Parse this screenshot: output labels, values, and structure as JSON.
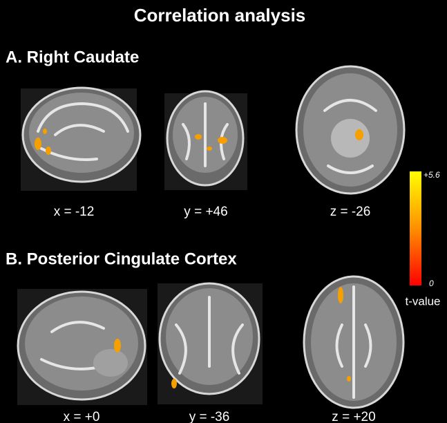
{
  "title": "Correlation analysis",
  "panels": [
    {
      "label": "A. Right Caudate",
      "slices": [
        "x = -12",
        "y = +46",
        "z = -26"
      ]
    },
    {
      "label": "B. Posterior Cingulate Cortex",
      "slices": [
        "x = +0",
        "y = -36",
        "z = +20"
      ]
    }
  ],
  "colorbar": {
    "max": "+5.6",
    "min": "0",
    "label": "t-value"
  }
}
